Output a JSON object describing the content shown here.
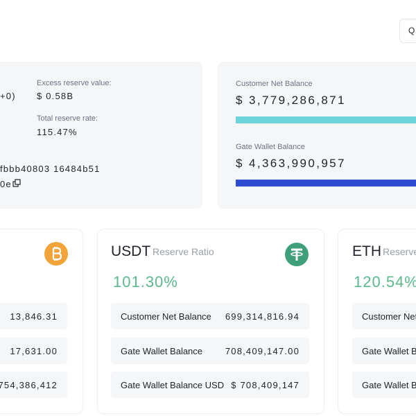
{
  "header": {
    "button": "Q"
  },
  "summary": {
    "partial_text": "+0)",
    "excess_label": "Excess reserve value:",
    "excess_value": "$ 0.58B",
    "rate_label": "Total reserve rate:",
    "rate_value": "115.47%",
    "hash_line1": "fbbb40803 16484b51",
    "hash_line2": "0e"
  },
  "balances": {
    "customer_label": "Customer Net Balance",
    "customer_value": "$ 3,779,286,871",
    "wallet_label": "Gate Wallet Balance",
    "wallet_value": "$ 4,363,990,957"
  },
  "cards": [
    {
      "rows": [
        {
          "value": "13,846.31"
        },
        {
          "value": "17,631.00"
        },
        {
          "value": "$ 754,386,412"
        }
      ]
    },
    {
      "coin": "USDT",
      "subtitle": "Reserve Ratio",
      "ratio": "101.30%",
      "rows": [
        {
          "label": "Customer Net Balance",
          "value": "699,314,816.94"
        },
        {
          "label": "Gate Wallet Balance",
          "value": "708,409,147.00"
        },
        {
          "label": "Gate Wallet Balance USD",
          "value": "$ 708,409,147"
        }
      ]
    },
    {
      "coin": "ETH",
      "subtitle": "Reserve",
      "ratio": "120.54%",
      "rows": [
        {
          "label": "Customer Net"
        },
        {
          "label": "Gate Wallet Ba"
        },
        {
          "label": "Gate Wallet Ba"
        }
      ]
    }
  ]
}
